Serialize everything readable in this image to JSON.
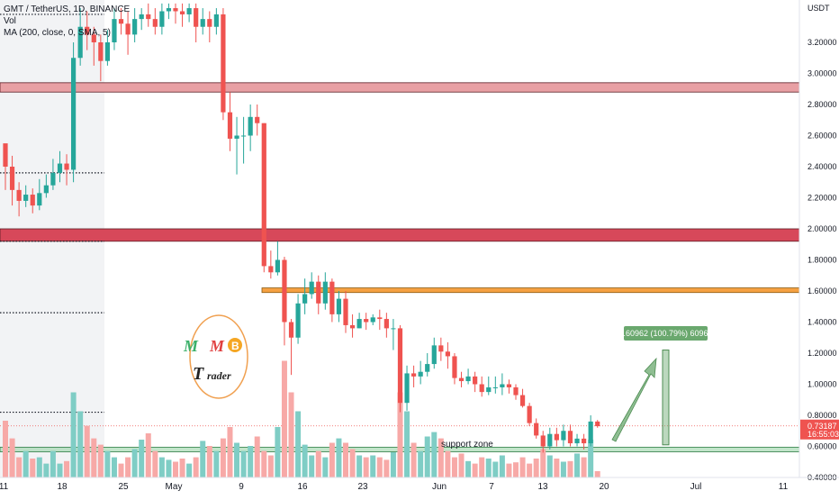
{
  "legend": {
    "symbol": "GMT / TetherUS, 1D, BINANCE",
    "vol": "Vol",
    "ma": "MA (200, close, 0, SMA, 5)"
  },
  "price_axis": {
    "currency": "USDT",
    "ticks": [
      "3.20000",
      "3.00000",
      "2.80000",
      "2.60000",
      "2.40000",
      "2.20000",
      "2.00000",
      "1.80000",
      "1.60000",
      "1.40000",
      "1.20000",
      "1.00000",
      "0.80000",
      "0.60000",
      "0.40000"
    ],
    "last_price": "0.73187",
    "countdown": "16:55:03"
  },
  "time_axis": {
    "labels": [
      "11",
      "18",
      "25",
      "May",
      "9",
      "16",
      "23",
      "Jun",
      "7",
      "13",
      "20",
      "Jul",
      "11"
    ]
  },
  "annotations": {
    "support_zone": "support zone",
    "measure_label": "0.60962 (100.79%) 60962"
  },
  "logo": {
    "letters": [
      "M",
      "M",
      "B",
      "T",
      "rader"
    ]
  },
  "colors": {
    "up": "#26a69a",
    "down": "#ef5350",
    "up_vol": "#7fcdc5",
    "down_vol": "#f7a9a7",
    "resistance_light": "#e8a0a4",
    "resistance_dark": "#d7485a",
    "orange_zone": "#f5a142",
    "support_zone": "#8fcf9e",
    "badge_red": "#ef5350",
    "measure_green": "#6aa86e"
  },
  "chart_data": {
    "type": "candlestick",
    "ylim": [
      0.4,
      3.4
    ],
    "price_ticks": [
      3.2,
      3.0,
      2.8,
      2.6,
      2.4,
      2.2,
      2.0,
      1.8,
      1.6,
      1.4,
      1.2,
      1.0,
      0.8,
      0.6,
      0.4
    ],
    "candles": [
      [
        2.55,
        2.4,
        2.45,
        2.25
      ],
      [
        2.4,
        2.25,
        2.47,
        2.15
      ],
      [
        2.25,
        2.18,
        2.3,
        2.08
      ],
      [
        2.18,
        2.22,
        2.28,
        2.14
      ],
      [
        2.22,
        2.15,
        2.26,
        2.1
      ],
      [
        2.15,
        2.23,
        2.32,
        2.12
      ],
      [
        2.23,
        2.28,
        2.35,
        2.2
      ],
      [
        2.28,
        2.36,
        2.45,
        2.25
      ],
      [
        2.36,
        2.42,
        2.5,
        2.3
      ],
      [
        2.42,
        2.38,
        2.48,
        2.28
      ],
      [
        2.38,
        3.1,
        3.2,
        2.3
      ],
      [
        3.1,
        3.3,
        3.42,
        3.05
      ],
      [
        3.3,
        3.25,
        3.4,
        3.15
      ],
      [
        3.25,
        3.2,
        3.3,
        3.05
      ],
      [
        3.2,
        3.08,
        3.25,
        2.95
      ],
      [
        3.08,
        3.2,
        3.28,
        3.05
      ],
      [
        3.2,
        3.35,
        3.42,
        3.15
      ],
      [
        3.35,
        3.32,
        3.42,
        3.25
      ],
      [
        3.32,
        3.25,
        3.4,
        3.12
      ],
      [
        3.25,
        3.35,
        3.42,
        3.2
      ],
      [
        3.35,
        3.38,
        3.42,
        3.28
      ],
      [
        3.38,
        3.35,
        3.45,
        3.3
      ],
      [
        3.35,
        3.3,
        3.42,
        3.25
      ],
      [
        3.3,
        3.4,
        3.45,
        3.25
      ],
      [
        3.4,
        3.42,
        3.45,
        3.35
      ],
      [
        3.42,
        3.4,
        3.45,
        3.32
      ],
      [
        3.4,
        3.38,
        3.45,
        3.3
      ],
      [
        3.38,
        3.42,
        3.45,
        3.33
      ],
      [
        3.42,
        3.3,
        3.45,
        3.2
      ],
      [
        3.3,
        3.35,
        3.42,
        3.25
      ],
      [
        3.35,
        3.3,
        3.4,
        3.2
      ],
      [
        3.3,
        3.38,
        3.42,
        3.25
      ],
      [
        3.38,
        2.75,
        3.42,
        2.7
      ],
      [
        2.75,
        2.58,
        2.88,
        2.5
      ],
      [
        2.58,
        2.6,
        2.72,
        2.35
      ],
      [
        2.6,
        2.6,
        2.72,
        2.42
      ],
      [
        2.6,
        2.72,
        2.8,
        2.5
      ],
      [
        2.72,
        2.68,
        2.8,
        2.6
      ],
      [
        2.68,
        1.76,
        2.68,
        1.72
      ],
      [
        1.76,
        1.72,
        1.86,
        1.68
      ],
      [
        1.72,
        1.8,
        1.92,
        1.7
      ],
      [
        1.8,
        1.4,
        1.82,
        1.25
      ],
      [
        1.4,
        1.3,
        1.42,
        1.06
      ],
      [
        1.3,
        1.52,
        1.58,
        1.26
      ],
      [
        1.52,
        1.58,
        1.68,
        1.45
      ],
      [
        1.58,
        1.66,
        1.72,
        1.55
      ],
      [
        1.66,
        1.52,
        1.7,
        1.45
      ],
      [
        1.52,
        1.66,
        1.72,
        1.48
      ],
      [
        1.66,
        1.45,
        1.68,
        1.4
      ],
      [
        1.45,
        1.55,
        1.6,
        1.4
      ],
      [
        1.55,
        1.38,
        1.6,
        1.33
      ],
      [
        1.38,
        1.36,
        1.45,
        1.3
      ],
      [
        1.36,
        1.42,
        1.46,
        1.36
      ],
      [
        1.42,
        1.4,
        1.46,
        1.35
      ],
      [
        1.4,
        1.43,
        1.45,
        1.38
      ],
      [
        1.43,
        1.42,
        1.48,
        1.35
      ],
      [
        1.42,
        1.36,
        1.46,
        1.3
      ],
      [
        1.36,
        1.36,
        1.42,
        1.22
      ],
      [
        1.36,
        0.88,
        1.38,
        0.82
      ],
      [
        0.88,
        1.07,
        1.12,
        0.83
      ],
      [
        1.07,
        1.05,
        1.12,
        0.98
      ],
      [
        1.05,
        1.08,
        1.15,
        1.0
      ],
      [
        1.08,
        1.13,
        1.2,
        1.05
      ],
      [
        1.13,
        1.25,
        1.3,
        1.1
      ],
      [
        1.25,
        1.21,
        1.3,
        1.15
      ],
      [
        1.21,
        1.18,
        1.27,
        1.1
      ],
      [
        1.18,
        1.04,
        1.2,
        1.0
      ],
      [
        1.04,
        1.02,
        1.08,
        0.98
      ],
      [
        1.02,
        1.05,
        1.1,
        1.0
      ],
      [
        1.05,
        1.0,
        1.08,
        0.95
      ],
      [
        1.0,
        0.95,
        1.05,
        0.92
      ],
      [
        0.95,
        0.98,
        1.05,
        0.93
      ],
      [
        0.98,
        0.98,
        1.05,
        0.94
      ],
      [
        0.98,
        1.0,
        1.07,
        0.93
      ],
      [
        1.0,
        0.98,
        1.03,
        0.94
      ],
      [
        0.98,
        0.93,
        1.0,
        0.9
      ],
      [
        0.93,
        0.86,
        0.97,
        0.85
      ],
      [
        0.86,
        0.75,
        0.88,
        0.73
      ],
      [
        0.75,
        0.67,
        0.78,
        0.65
      ],
      [
        0.67,
        0.6,
        0.7,
        0.56
      ],
      [
        0.6,
        0.68,
        0.72,
        0.58
      ],
      [
        0.68,
        0.64,
        0.72,
        0.6
      ],
      [
        0.64,
        0.7,
        0.74,
        0.6
      ],
      [
        0.7,
        0.62,
        0.74,
        0.6
      ],
      [
        0.62,
        0.65,
        0.68,
        0.6
      ],
      [
        0.65,
        0.62,
        0.68,
        0.58
      ],
      [
        0.62,
        0.76,
        0.8,
        0.6
      ],
      [
        0.76,
        0.73,
        0.77,
        0.72
      ]
    ],
    "volume_scale": [
      0,
      2
    ],
    "volumes": [
      0.9,
      0.62,
      0.32,
      0.42,
      0.3,
      0.32,
      0.22,
      0.42,
      0.22,
      0.26,
      1.35,
      1.05,
      0.82,
      0.62,
      0.52,
      0.42,
      0.32,
      0.22,
      0.32,
      0.45,
      0.6,
      0.7,
      0.42,
      0.32,
      0.28,
      0.25,
      0.3,
      0.22,
      0.32,
      0.58,
      0.5,
      0.42,
      0.62,
      0.8,
      0.55,
      0.42,
      0.5,
      0.65,
      0.42,
      0.35,
      0.8,
      1.85,
      1.35,
      1.05,
      0.52,
      0.35,
      0.42,
      0.32,
      0.55,
      0.62,
      0.55,
      0.45,
      0.35,
      0.32,
      0.35,
      0.32,
      0.28,
      0.4,
      1.35,
      1.05,
      0.55,
      0.42,
      0.65,
      0.72,
      0.62,
      0.42,
      0.32,
      0.38,
      0.26,
      0.22,
      0.32,
      0.3,
      0.25,
      0.35,
      0.22,
      0.24,
      0.32,
      0.22,
      0.3,
      0.45,
      0.35,
      0.3,
      0.25,
      0.26,
      0.38,
      0.32,
      0.6,
      0.1
    ],
    "resistance_zones": [
      [
        2.88,
        2.94
      ],
      [
        1.92,
        2.0
      ]
    ],
    "orange_zone": [
      1.59,
      1.62
    ],
    "support_zone": [
      0.565,
      0.595
    ],
    "dotted_levels": [
      3.38,
      2.36,
      1.92,
      1.46,
      0.82
    ],
    "last_price": 0.73187,
    "measure": [
      0.61,
      1.22
    ]
  }
}
